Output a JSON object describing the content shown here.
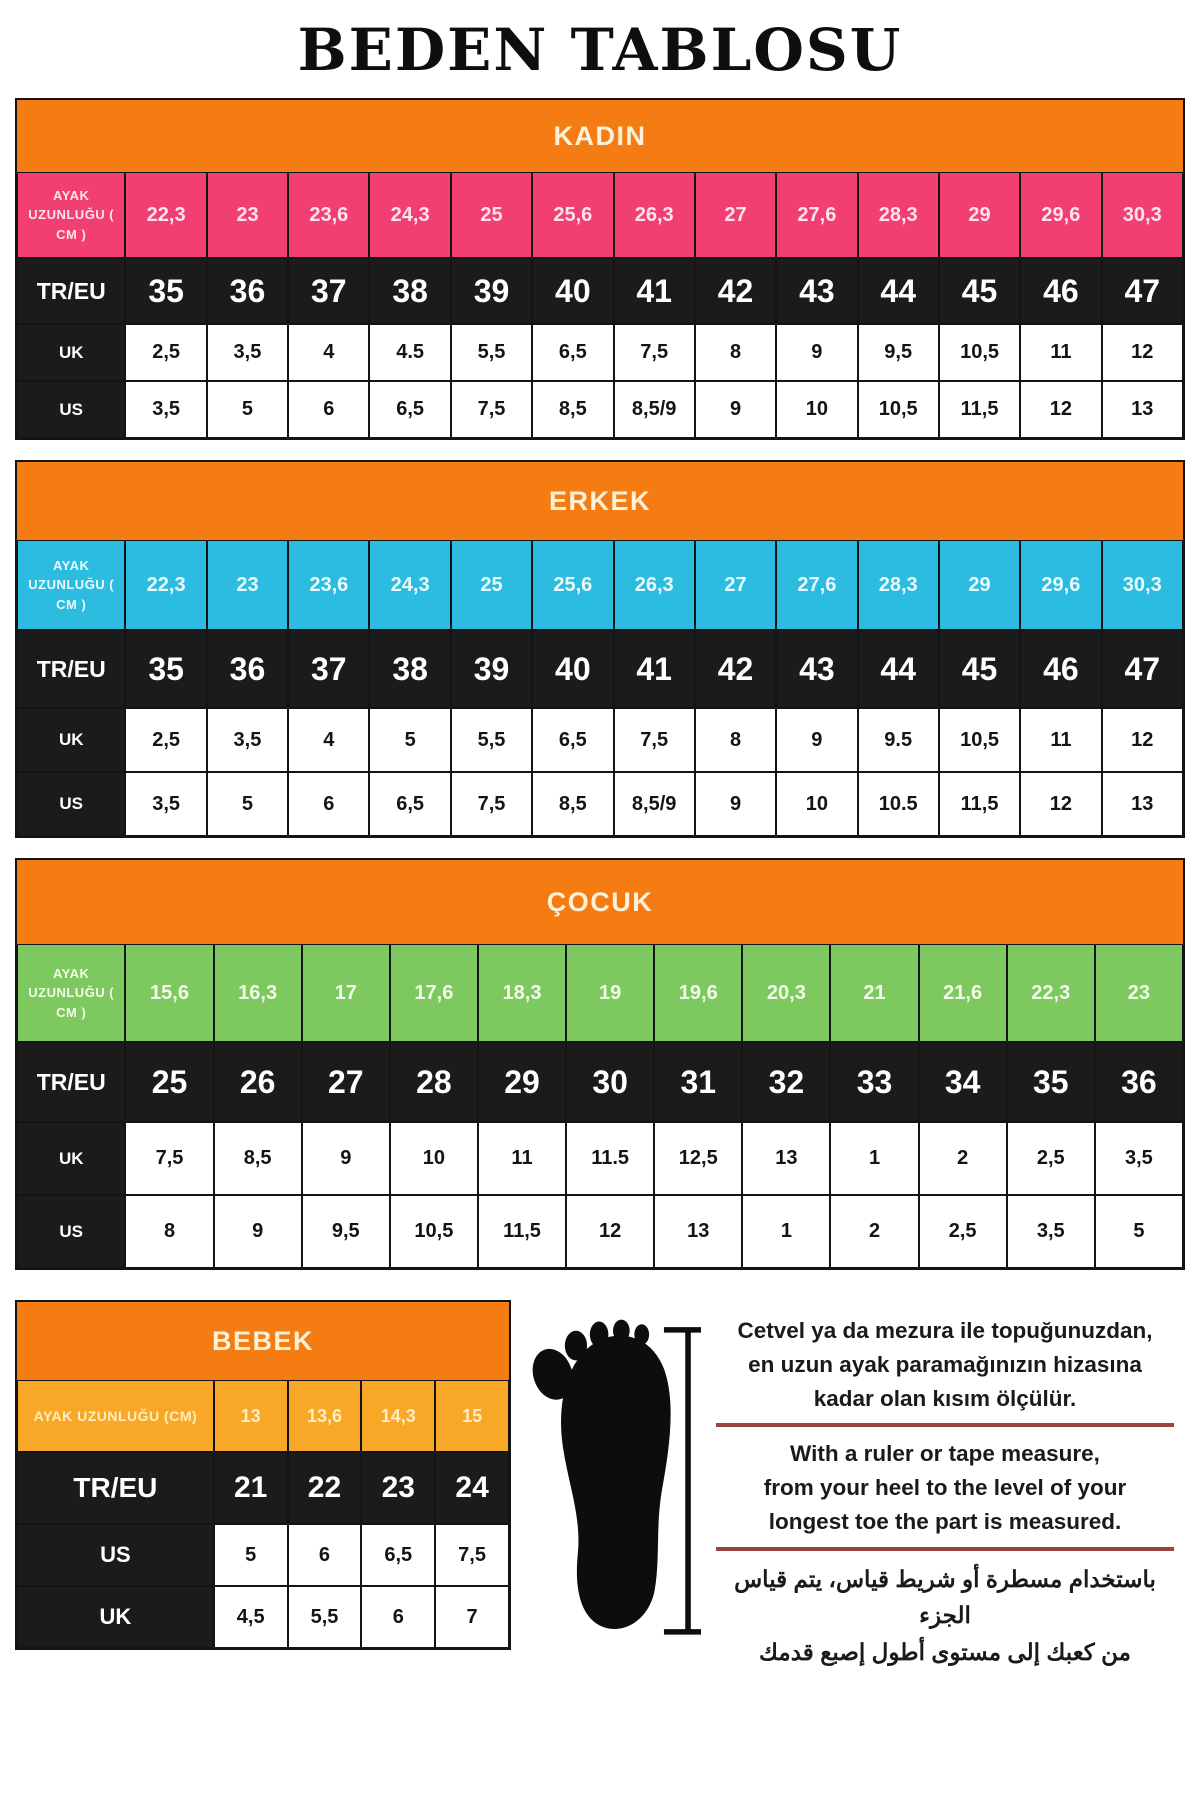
{
  "title": "BEDEN TABLOSU",
  "colors": {
    "section_header_bg": "#f47c12",
    "section_header_text": "#fdf2d9",
    "black_row": "#1b1b1b",
    "divider_red": "#9b4340",
    "kadin_accent": "#f23f71",
    "erkek_accent": "#2bbcdf",
    "cocuk_accent": "#7dc960",
    "bebek_accent": "#f9a726"
  },
  "tables": [
    {
      "id": "kadin",
      "header": "KADIN",
      "accent": "#f23f71",
      "measure_text": "#ffe3ec",
      "rows": [
        {
          "label": "AYAK UZUNLUĞU ( CM )",
          "style": "measure",
          "values": [
            "22,3",
            "23",
            "23,6",
            "24,3",
            "25",
            "25,6",
            "26,3",
            "27",
            "27,6",
            "28,3",
            "29",
            "29,6",
            "30,3"
          ]
        },
        {
          "label": "TR/EU",
          "style": "eu",
          "values": [
            "35",
            "36",
            "37",
            "38",
            "39",
            "40",
            "41",
            "42",
            "43",
            "44",
            "45",
            "46",
            "47"
          ]
        },
        {
          "label": "UK",
          "style": "plain",
          "values": [
            "2,5",
            "3,5",
            "4",
            "4.5",
            "5,5",
            "6,5",
            "7,5",
            "8",
            "9",
            "9,5",
            "10,5",
            "11",
            "12"
          ]
        },
        {
          "label": "US",
          "style": "plain",
          "values": [
            "3,5",
            "5",
            "6",
            "6,5",
            "7,5",
            "8,5",
            "8,5/9",
            "9",
            "10",
            "10,5",
            "11,5",
            "12",
            "13"
          ]
        }
      ]
    },
    {
      "id": "erkek",
      "header": "ERKEK",
      "accent": "#2bbcdf",
      "measure_text": "#eafbff",
      "rows": [
        {
          "label": "AYAK UZUNLUĞU ( CM )",
          "style": "measure",
          "values": [
            "22,3",
            "23",
            "23,6",
            "24,3",
            "25",
            "25,6",
            "26,3",
            "27",
            "27,6",
            "28,3",
            "29",
            "29,6",
            "30,3"
          ]
        },
        {
          "label": "TR/EU",
          "style": "eu",
          "values": [
            "35",
            "36",
            "37",
            "38",
            "39",
            "40",
            "41",
            "42",
            "43",
            "44",
            "45",
            "46",
            "47"
          ]
        },
        {
          "label": "UK",
          "style": "plain",
          "values": [
            "2,5",
            "3,5",
            "4",
            "5",
            "5,5",
            "6,5",
            "7,5",
            "8",
            "9",
            "9.5",
            "10,5",
            "11",
            "12"
          ]
        },
        {
          "label": "US",
          "style": "plain",
          "values": [
            "3,5",
            "5",
            "6",
            "6,5",
            "7,5",
            "8,5",
            "8,5/9",
            "9",
            "10",
            "10.5",
            "11,5",
            "12",
            "13"
          ]
        }
      ]
    },
    {
      "id": "cocuk",
      "header": "ÇOCUK",
      "accent": "#7dc960",
      "measure_text": "#f2fce9",
      "rows": [
        {
          "label": "AYAK UZUNLUĞU ( CM )",
          "style": "measure",
          "values": [
            "15,6",
            "16,3",
            "17",
            "17,6",
            "18,3",
            "19",
            "19,6",
            "20,3",
            "21",
            "21,6",
            "22,3",
            "23"
          ]
        },
        {
          "label": "TR/EU",
          "style": "eu",
          "values": [
            "25",
            "26",
            "27",
            "28",
            "29",
            "30",
            "31",
            "32",
            "33",
            "34",
            "35",
            "36"
          ]
        },
        {
          "label": "UK",
          "style": "plain",
          "values": [
            "7,5",
            "8,5",
            "9",
            "10",
            "11",
            "11.5",
            "12,5",
            "13",
            "1",
            "2",
            "2,5",
            "3,5"
          ]
        },
        {
          "label": "US",
          "style": "plain",
          "values": [
            "8",
            "9",
            "9,5",
            "10,5",
            "11,5",
            "12",
            "13",
            "1",
            "2",
            "2,5",
            "3,5",
            "5"
          ]
        }
      ]
    },
    {
      "id": "bebek",
      "header": "BEBEK",
      "accent": "#f9a726",
      "measure_text": "#ffeec2",
      "rows": [
        {
          "label": "AYAK UZUNLUĞU (CM)",
          "style": "measure",
          "values": [
            "13",
            "13,6",
            "14,3",
            "15"
          ]
        },
        {
          "label": "TR/EU",
          "style": "eu",
          "values": [
            "21",
            "22",
            "23",
            "24"
          ]
        },
        {
          "label": "US",
          "style": "plain",
          "values": [
            "5",
            "6",
            "6,5",
            "7,5"
          ]
        },
        {
          "label": "UK",
          "style": "plain",
          "values": [
            "4,5",
            "5,5",
            "6",
            "7"
          ]
        }
      ]
    }
  ],
  "instructions": {
    "tr": [
      "Cetvel ya da mezura ile topuğunuzdan,",
      "en uzun ayak paramağınızın hizasına",
      "kadar olan kısım ölçülür."
    ],
    "en": [
      "With a ruler or tape measure,",
      "from your heel to the level of your",
      "longest toe the part is measured."
    ],
    "ar": [
      "باستخدام مسطرة أو شريط قياس، يتم قياس الجزء",
      "من كعبك إلى مستوى أطول إصبع قدمك"
    ]
  }
}
